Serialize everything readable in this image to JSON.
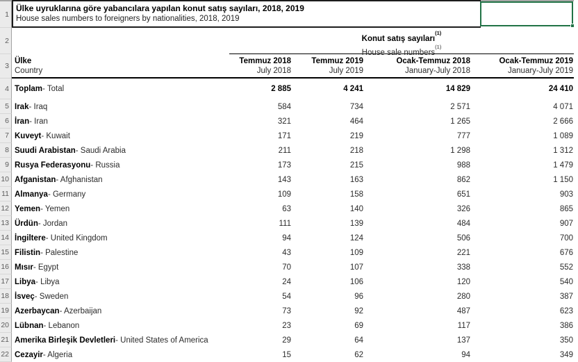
{
  "title": {
    "tr": "Ülke uyruklarına göre yabancılara yapılan konut satış sayıları, 2018, 2019",
    "en": "House sales numbers to foreigners by nationalities, 2018, 2019"
  },
  "group": {
    "tr": "Konut satış sayıları",
    "en": "House sale numbers",
    "fn": "(1)"
  },
  "cols": {
    "country": {
      "tr": "Ülke",
      "en": "Country"
    },
    "periods": [
      {
        "tr": "Temmuz 2018",
        "en": "July 2018"
      },
      {
        "tr": "Temmuz 2019",
        "en": "July 2019"
      },
      {
        "tr": "Ocak-Temmuz 2018",
        "en": "January-July 2018"
      },
      {
        "tr": "Ocak-Temmuz 2019",
        "en": "January-July 2019"
      }
    ]
  },
  "gutter": {
    "r1": "1",
    "r2": "2",
    "r3": "3"
  },
  "colors": {
    "selection_green": "#217346"
  },
  "table": {
    "rows": [
      {
        "n": "4",
        "tr": "Toplam",
        "sep": " - ",
        "en": "Total",
        "bold": true,
        "v": [
          "2 885",
          "4 241",
          "14 829",
          "24 410"
        ]
      },
      {
        "n": "5",
        "tr": "Irak",
        "sep": " - ",
        "en": "Iraq",
        "v": [
          "584",
          "734",
          "2 571",
          "4 071"
        ]
      },
      {
        "n": "6",
        "tr": "İran",
        "sep": " - ",
        "en": "Iran",
        "v": [
          "321",
          "464",
          "1 265",
          "2 666"
        ]
      },
      {
        "n": "7",
        "tr": "Kuveyt",
        "sep": " - ",
        "en": "Kuwait",
        "v": [
          "171",
          "219",
          "777",
          "1 089"
        ]
      },
      {
        "n": "8",
        "tr": "Suudi Arabistan",
        "sep": " - ",
        "en": "Saudi Arabia",
        "v": [
          "211",
          "218",
          "1 298",
          "1 312"
        ]
      },
      {
        "n": "9",
        "tr": "Rusya Federasyonu",
        "sep": " - ",
        "en": "Russia",
        "v": [
          "173",
          "215",
          "988",
          "1 479"
        ]
      },
      {
        "n": "10",
        "tr": "Afganistan",
        "sep": " - ",
        "en": "Afghanistan",
        "v": [
          "143",
          "163",
          "862",
          "1 150"
        ]
      },
      {
        "n": "11",
        "tr": "Almanya",
        "sep": " - ",
        "en": "Germany",
        "v": [
          "109",
          "158",
          "651",
          "903"
        ]
      },
      {
        "n": "12",
        "tr": "Yemen",
        "sep": " - ",
        "en": "Yemen",
        "v": [
          "63",
          "140",
          "326",
          "865"
        ]
      },
      {
        "n": "13",
        "tr": "Ürdün",
        "sep": " - ",
        "en": "Jordan",
        "v": [
          "111",
          "139",
          "484",
          "907"
        ]
      },
      {
        "n": "14",
        "tr": "İngiltere",
        "sep": " - ",
        "en": "United Kingdom",
        "v": [
          "94",
          "124",
          "506",
          "700"
        ]
      },
      {
        "n": "15",
        "tr": "Filistin",
        "sep": " - ",
        "en": "Palestine",
        "v": [
          "43",
          "109",
          "221",
          "676"
        ]
      },
      {
        "n": "16",
        "tr": "Mısır",
        "sep": " - ",
        "en": "Egypt",
        "v": [
          "70",
          "107",
          "338",
          "552"
        ]
      },
      {
        "n": "17",
        "tr": "Libya",
        "sep": " - ",
        "en": "Libya",
        "v": [
          "24",
          "106",
          "120",
          "540"
        ]
      },
      {
        "n": "18",
        "tr": "İsveç",
        "sep": " - ",
        "en": "Sweden",
        "v": [
          "54",
          "96",
          "280",
          "387"
        ]
      },
      {
        "n": "19",
        "tr": "Azerbaycan",
        "sep": " - ",
        "en": "Azerbaijan",
        "v": [
          "73",
          "92",
          "487",
          "623"
        ]
      },
      {
        "n": "20",
        "tr": "Lübnan",
        "sep": " - ",
        "en": "Lebanon",
        "v": [
          "23",
          "69",
          "117",
          "386"
        ]
      },
      {
        "n": "21",
        "tr": "Amerika Birleşik Devletleri",
        "sep": " - ",
        "en": "United States of America",
        "v": [
          "29",
          "64",
          "137",
          "350"
        ]
      },
      {
        "n": "22",
        "tr": "Cezayir",
        "sep": " - ",
        "en": "Algeria",
        "v": [
          "15",
          "62",
          "94",
          "349"
        ]
      }
    ]
  }
}
